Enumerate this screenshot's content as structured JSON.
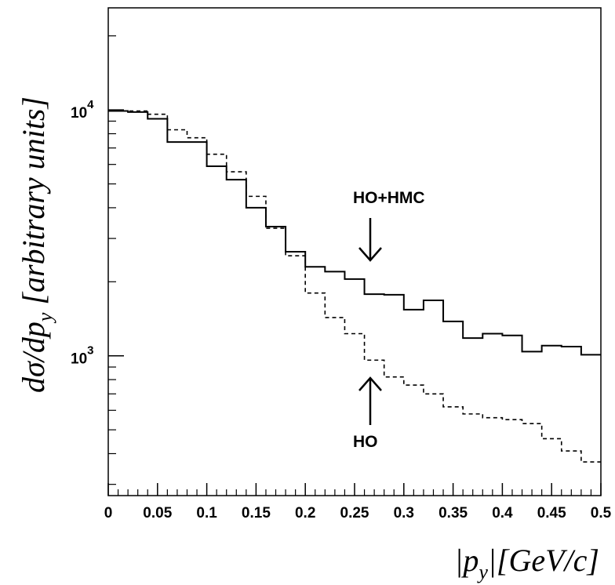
{
  "chart_data": {
    "type": "line",
    "x_edges": [
      0,
      0.02,
      0.04,
      0.06,
      0.08,
      0.1,
      0.12,
      0.14,
      0.16,
      0.18,
      0.2,
      0.22,
      0.24,
      0.26,
      0.28,
      0.3,
      0.32,
      0.34,
      0.36,
      0.38,
      0.4,
      0.42,
      0.44,
      0.46,
      0.48,
      0.5
    ],
    "series": [
      {
        "name": "HO+HMC",
        "style": "solid",
        "values": [
          9900,
          9800,
          9200,
          7400,
          7400,
          5900,
          5200,
          4000,
          3350,
          2650,
          2300,
          2200,
          2050,
          1780,
          1770,
          1540,
          1680,
          1380,
          1180,
          1230,
          1210,
          1040,
          1100,
          1090,
          1010
        ]
      },
      {
        "name": "HO",
        "style": "dashed",
        "values": [
          9900,
          9900,
          9600,
          8300,
          7700,
          6600,
          5600,
          4450,
          3300,
          2550,
          1800,
          1430,
          1230,
          960,
          820,
          760,
          700,
          620,
          580,
          560,
          550,
          530,
          460,
          410,
          370
        ]
      }
    ],
    "xlim": [
      0,
      0.5
    ],
    "ylim": [
      270,
      26000
    ],
    "yscale": "log",
    "x_ticks": [
      "0",
      "0.05",
      "0.1",
      "0.15",
      "0.2",
      "0.25",
      "0.3",
      "0.35",
      "0.4",
      "0.45",
      "0.5"
    ],
    "y_major_ticks": [
      {
        "value": 1000,
        "base": "10",
        "exponent": "3"
      },
      {
        "value": 10000,
        "base": "10",
        "exponent": "4"
      }
    ],
    "xlabel": {
      "open": "|",
      "var": "p",
      "sub": "y",
      "close": "|[GeV/c]"
    },
    "ylabel": {
      "main": "dσ/dp",
      "sub": "y",
      "rest": " [arbitrary units]"
    },
    "annotations": [
      {
        "text": "HO+HMC",
        "arrow": "down",
        "x": 0.27
      },
      {
        "text": "HO",
        "arrow": "up",
        "x": 0.27
      }
    ],
    "grid": false
  }
}
